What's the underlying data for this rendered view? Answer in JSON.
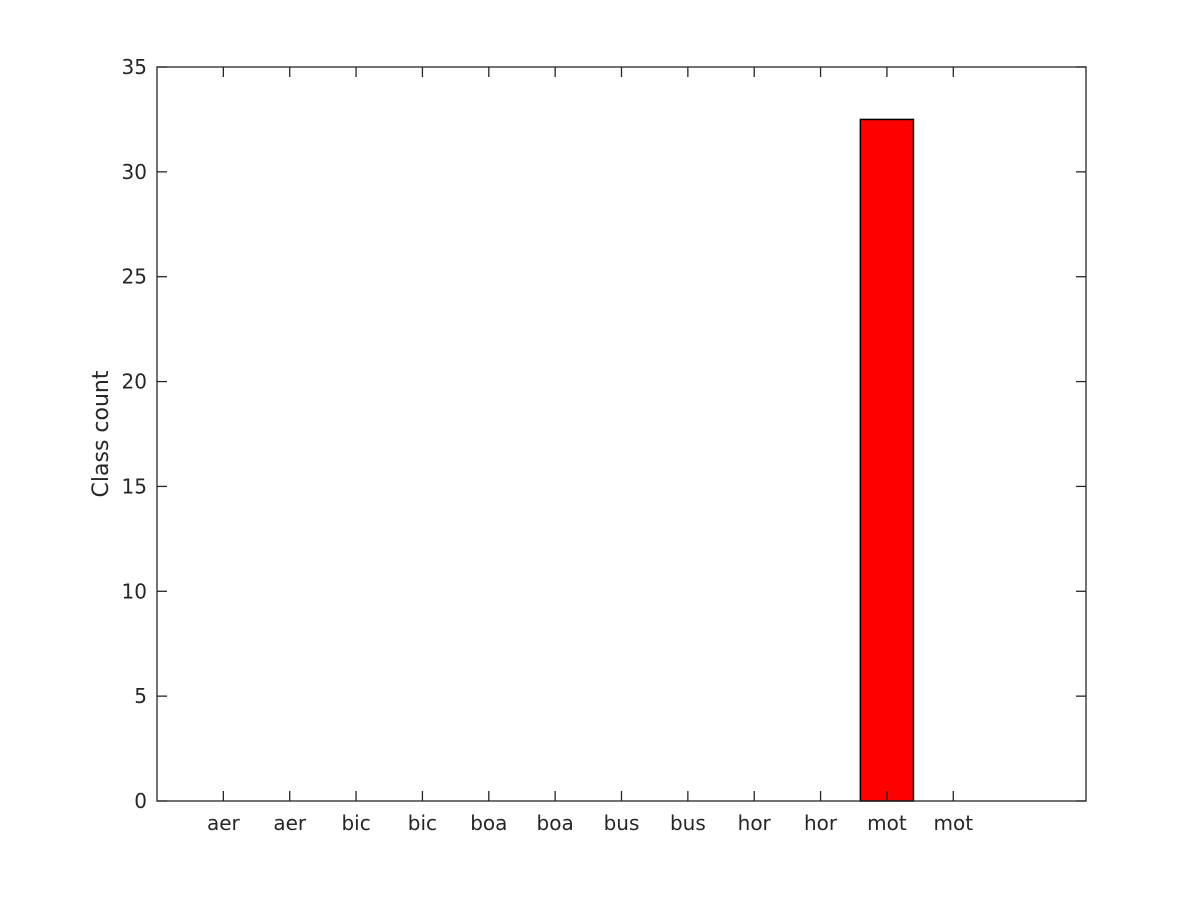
{
  "chart_data": {
    "type": "bar",
    "title": "",
    "xlabel": "",
    "ylabel": "Class count",
    "categories": [
      "aer",
      "aer",
      "bic",
      "bic",
      "boa",
      "boa",
      "bus",
      "bus",
      "hor",
      "hor",
      "mot",
      "mot"
    ],
    "values": [
      0,
      0,
      0,
      0,
      0,
      0,
      0,
      0,
      0,
      0,
      32.5,
      0
    ],
    "ylim": [
      0,
      35
    ],
    "yticks": [
      0,
      5,
      10,
      15,
      20,
      25,
      30,
      35
    ],
    "x_slot_count": 14,
    "bar_color": "#ff0000",
    "bar_edge_color": "#000000",
    "axis_color": "#262626",
    "grid": false,
    "legend": "none"
  }
}
